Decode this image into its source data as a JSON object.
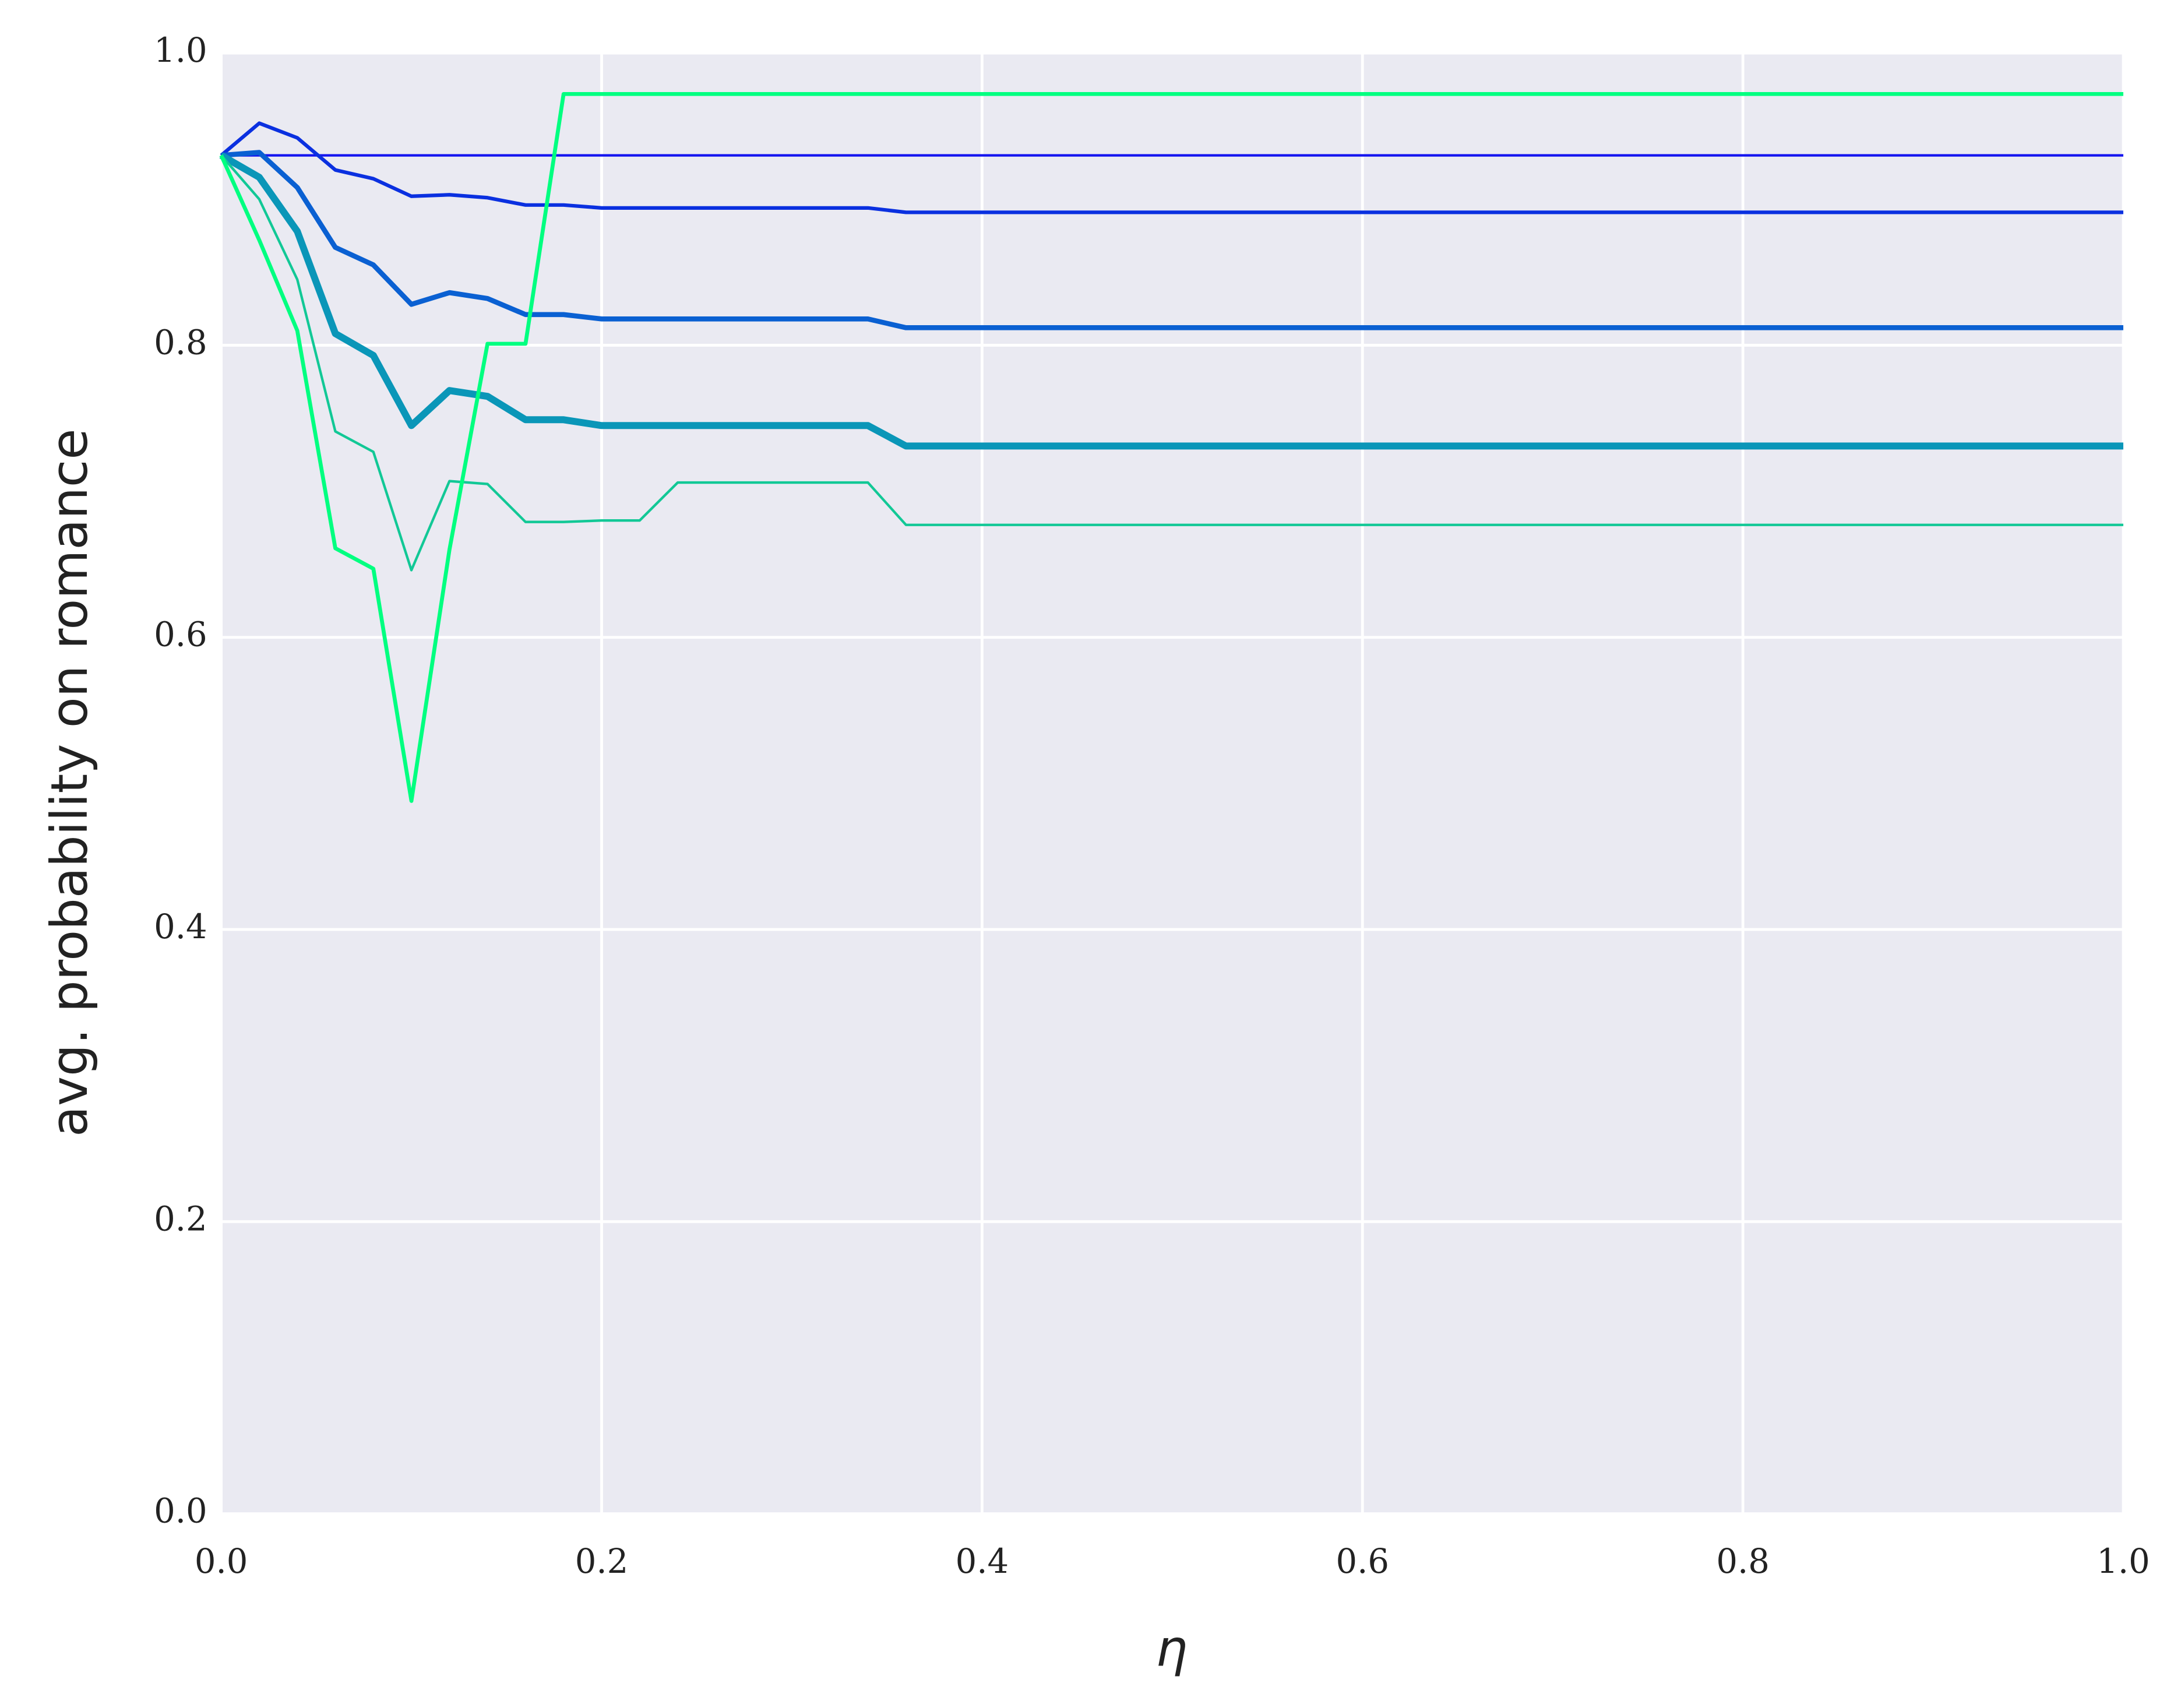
{
  "chart_data": {
    "type": "line",
    "xlabel": "η",
    "ylabel": "avg. probability on romance",
    "x": [
      0,
      0.02,
      0.04,
      0.06,
      0.08,
      0.1,
      0.12,
      0.14,
      0.16,
      0.18,
      0.2,
      0.22,
      0.24,
      0.26,
      0.28,
      0.3,
      0.32,
      0.34,
      0.36,
      1
    ],
    "series": [
      {
        "color": "#1414f0",
        "width": 1.8,
        "values": [
          0.93,
          0.93,
          0.93,
          0.93,
          0.93,
          0.93,
          0.93,
          0.93,
          0.93,
          0.93,
          0.93,
          0.93,
          0.93,
          0.93,
          0.93,
          0.93,
          0.93,
          0.93,
          0.93,
          0.93
        ]
      },
      {
        "color": "#0a30e0",
        "width": 2.6,
        "values": [
          0.93,
          0.952,
          0.942,
          0.92,
          0.914,
          0.902,
          0.903,
          0.901,
          0.896,
          0.896,
          0.894,
          0.894,
          0.894,
          0.894,
          0.894,
          0.894,
          0.894,
          0.894,
          0.891,
          0.891
        ]
      },
      {
        "color": "#0a60d2",
        "width": 3.6,
        "values": [
          0.93,
          0.932,
          0.908,
          0.867,
          0.855,
          0.828,
          0.836,
          0.832,
          0.821,
          0.821,
          0.818,
          0.818,
          0.818,
          0.818,
          0.818,
          0.818,
          0.818,
          0.818,
          0.812,
          0.812
        ]
      },
      {
        "color": "#0a96b8",
        "width": 5,
        "values": [
          0.93,
          0.915,
          0.878,
          0.808,
          0.793,
          0.745,
          0.769,
          0.765,
          0.749,
          0.749,
          0.745,
          0.745,
          0.745,
          0.745,
          0.745,
          0.745,
          0.745,
          0.745,
          0.731,
          0.731
        ]
      },
      {
        "color": "#12c896",
        "width": 1.8,
        "values": [
          0.93,
          0.9,
          0.845,
          0.741,
          0.727,
          0.646,
          0.707,
          0.705,
          0.679,
          0.679,
          0.68,
          0.68,
          0.706,
          0.706,
          0.706,
          0.706,
          0.706,
          0.706,
          0.677,
          0.677
        ]
      },
      {
        "color": "#00ff80",
        "width": 2.8,
        "values": [
          0.93,
          0.872,
          0.81,
          0.661,
          0.647,
          0.488,
          0.66,
          0.801,
          0.801,
          0.972,
          0.972,
          0.972,
          0.972,
          0.972,
          0.972,
          0.972,
          0.972,
          0.972,
          0.972,
          0.972
        ]
      }
    ],
    "xlim": [
      0,
      1
    ],
    "ylim": [
      0,
      1
    ],
    "xticks": [
      {
        "value": 0,
        "label": "0.0"
      },
      0.2,
      0.4,
      0.6,
      0.8,
      {
        "value": 1,
        "label": "1.0"
      }
    ],
    "yticks": [
      {
        "value": 0,
        "label": "0.0"
      },
      0.2,
      0.4,
      0.6,
      0.8,
      {
        "value": 1,
        "label": "1.0"
      }
    ],
    "grid": true
  }
}
